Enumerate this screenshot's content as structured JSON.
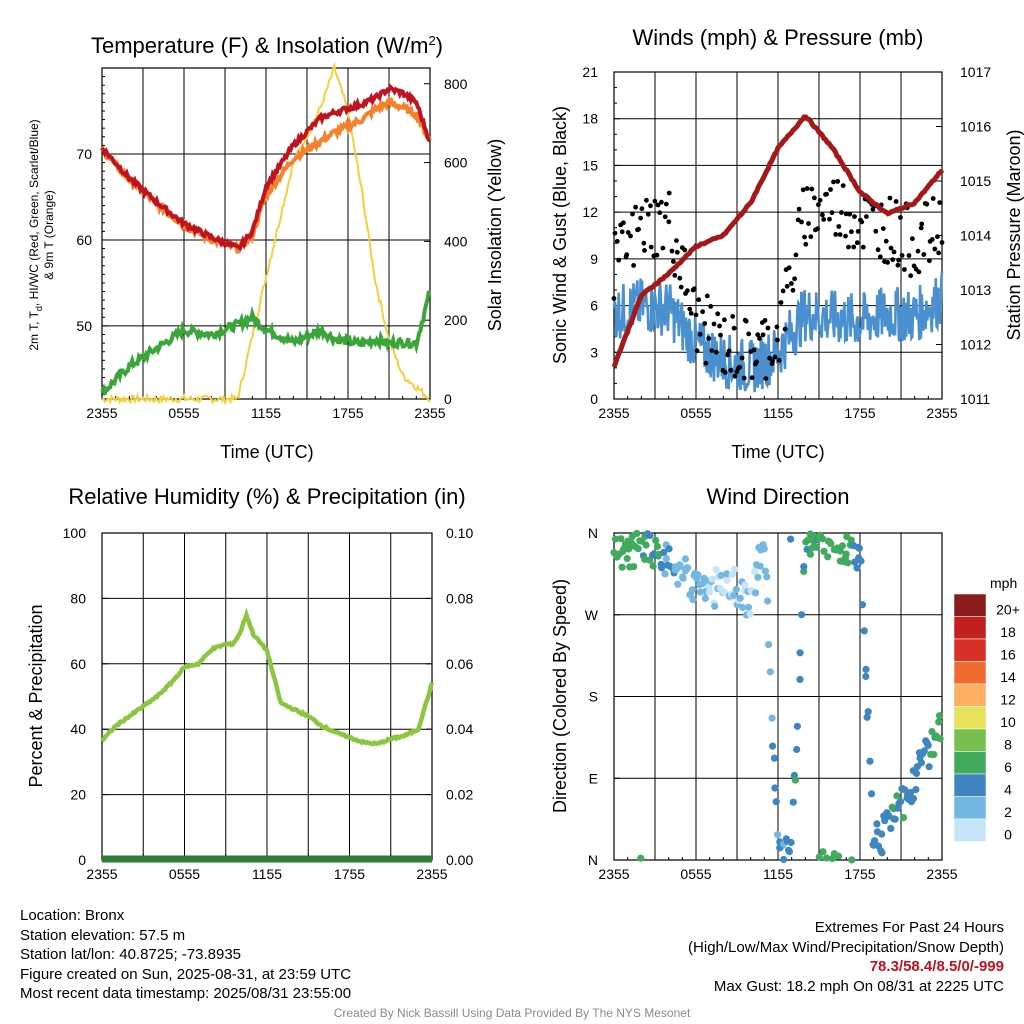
{
  "x_ticks": [
    "2355",
    "0555",
    "1155",
    "1755",
    "2355"
  ],
  "colors": {
    "red": "#c1121f",
    "orange": "#f4812b",
    "green": "#3aa63a",
    "yellow": "#f4d03f",
    "blue": "#4a90cf",
    "black": "#000000",
    "maroon": "#a31818",
    "rh": "#8cc63f",
    "precip": "#2f7d33"
  },
  "chart_data": [
    {
      "type": "line",
      "title": "Temperature (F) & Insolation (W/m²)",
      "xlabel": "Time (UTC)",
      "ylabel": "2m T, T_d, HI/WC (Red, Green, Scarlet/Blue) & 9m T (Orange)",
      "ylabel2": "Solar Insolation (Yellow)",
      "x": [
        0,
        2,
        4,
        6,
        8,
        10,
        11,
        12,
        14,
        16,
        17,
        19,
        20,
        21,
        22,
        23,
        24
      ],
      "ylim": [
        41.5,
        80
      ],
      "yticks": [
        50,
        60,
        70
      ],
      "y2lim": [
        0,
        840
      ],
      "y2ticks": [
        0,
        200,
        400,
        600,
        800
      ],
      "series": [
        {
          "name": "2m T",
          "values": [
            70.7,
            67.2,
            64.4,
            61.9,
            60.3,
            59.0,
            61.0,
            66.2,
            71.0,
            74.2,
            74.8,
            75.8,
            76.5,
            77.6,
            77.1,
            76.0,
            71.4
          ]
        },
        {
          "name": "9m T",
          "values": [
            70.5,
            67.0,
            64.2,
            61.7,
            60.1,
            59.0,
            60.6,
            65.2,
            69.5,
            71.5,
            72.5,
            74.0,
            75.2,
            76.0,
            75.4,
            74.6,
            71.5
          ]
        },
        {
          "name": "T_d",
          "values": [
            42.2,
            45.3,
            47.4,
            49.5,
            49.0,
            50.2,
            51.0,
            49.6,
            48.1,
            49.5,
            48.5,
            47.9,
            48.4,
            48.0,
            48.1,
            48.0,
            54.0
          ]
        },
        {
          "name": "Solar Insolation",
          "axis": "y2",
          "x": [
            0,
            9.8,
            10,
            12,
            14,
            16,
            17,
            18,
            19,
            20,
            21,
            22,
            23,
            24
          ],
          "values": [
            0,
            0,
            10,
            310,
            600,
            740,
            840,
            730,
            530,
            300,
            150,
            60,
            30,
            0
          ]
        }
      ]
    },
    {
      "type": "scatter",
      "title": "Winds (mph) & Pressure (mb)",
      "xlabel": "Time (UTC)",
      "ylabel": "Sonic Wind & Gust (Blue, Black)",
      "ylabel2": "Station Pressure (Maroon)",
      "ylim": [
        0,
        21
      ],
      "yticks": [
        0,
        3,
        6,
        9,
        12,
        15,
        18,
        21
      ],
      "y2lim": [
        1011,
        1017
      ],
      "y2ticks": [
        1011,
        1012,
        1013,
        1014,
        1015,
        1016,
        1017
      ],
      "x": [
        0,
        2,
        4,
        6,
        8,
        10,
        12,
        14,
        16,
        18,
        20,
        22,
        24
      ],
      "series": [
        {
          "name": "Sonic Wind",
          "values": [
            5.5,
            6.0,
            5.8,
            3.5,
            2.5,
            2.0,
            3.0,
            5.5,
            5.2,
            5.0,
            5.5,
            5.3,
            6.5
          ]
        },
        {
          "name": "Gust",
          "values": [
            8.5,
            11.0,
            11.5,
            5.0,
            3.5,
            3.0,
            4.0,
            12.0,
            12.5,
            11.5,
            11.0,
            10.0,
            11.0
          ]
        },
        {
          "name": "Station Pressure",
          "axis": "y2",
          "values": [
            1011.6,
            1012.9,
            1013.3,
            1013.8,
            1014.0,
            1014.6,
            1015.6,
            1016.2,
            1015.6,
            1014.8,
            1014.4,
            1014.6,
            1015.2
          ]
        }
      ]
    },
    {
      "type": "line",
      "title": "Relative Humidity (%) & Precipitation (in)",
      "ylabel": "Percent & Precipitation",
      "x": [
        0,
        1,
        2,
        3,
        4,
        5,
        6,
        7,
        8,
        9,
        9.5,
        10,
        10.5,
        11,
        12,
        13,
        14,
        15,
        16,
        17,
        18,
        19,
        20,
        21,
        22,
        23,
        24
      ],
      "ylim": [
        0,
        100
      ],
      "yticks": [
        0,
        20,
        40,
        60,
        80,
        100
      ],
      "y2lim": [
        0,
        0.1
      ],
      "y2ticks": [
        "0.00",
        "0.02",
        "0.04",
        "0.06",
        "0.08",
        "0.10"
      ],
      "series": [
        {
          "name": "Relative Humidity",
          "values": [
            36.5,
            41,
            44,
            47,
            50,
            54,
            59,
            60,
            64.5,
            66,
            66,
            69,
            75,
            69,
            64,
            48,
            46,
            44,
            41,
            39,
            37.5,
            36,
            35.5,
            37,
            38,
            40,
            54
          ]
        },
        {
          "name": "Precipitation",
          "axis": "y2",
          "values": [
            0,
            0,
            0,
            0,
            0,
            0,
            0,
            0,
            0,
            0,
            0,
            0,
            0,
            0,
            0,
            0,
            0,
            0,
            0,
            0,
            0,
            0,
            0,
            0,
            0,
            0,
            0
          ]
        }
      ]
    },
    {
      "type": "scatter",
      "title": "Wind Direction",
      "ylabel": "Direction (Colored By Speed)",
      "yticks": [
        "N",
        "E",
        "S",
        "W",
        "N"
      ],
      "ylim": [
        0,
        360
      ],
      "x": [
        0,
        1,
        2,
        3,
        4,
        5,
        6,
        7,
        8,
        9,
        10,
        11,
        12,
        13,
        14,
        15,
        16,
        17,
        18,
        19,
        20,
        21,
        22,
        23,
        24
      ],
      "directions": [
        335,
        340,
        345,
        340,
        330,
        320,
        300,
        290,
        310,
        300,
        280,
        355,
        5,
        10,
        350,
        355,
        350,
        345,
        340,
        15,
        35,
        60,
        90,
        120,
        150
      ],
      "speeds": [
        6,
        6,
        6,
        5,
        3,
        2,
        2,
        1,
        1,
        1,
        1,
        2,
        3,
        4,
        5,
        6,
        6,
        6,
        4,
        4,
        4,
        5,
        4,
        4,
        7
      ],
      "legend_title": "mph",
      "legend": [
        {
          "label": "20+",
          "color": "#8b1a1a"
        },
        {
          "label": "18",
          "color": "#c0201e"
        },
        {
          "label": "16",
          "color": "#d73027"
        },
        {
          "label": "14",
          "color": "#ef6b2f"
        },
        {
          "label": "12",
          "color": "#fdae61"
        },
        {
          "label": "10",
          "color": "#e8e15a"
        },
        {
          "label": "8",
          "color": "#78c04e"
        },
        {
          "label": "6",
          "color": "#41ab5d"
        },
        {
          "label": "4",
          "color": "#3f86c1"
        },
        {
          "label": "2",
          "color": "#74b7e3"
        },
        {
          "label": "0",
          "color": "#c6e4f7"
        }
      ]
    }
  ],
  "footer_left": [
    "Location: Bronx",
    "Station elevation: 57.5 m",
    "Station lat/lon: 40.8725; -73.8935",
    "Figure created on Sun, 2025-08-31, at 23:59 UTC",
    "Most recent data timestamp: 2025/08/31 23:55:00"
  ],
  "footer_right": {
    "title": "Extremes For Past 24 Hours",
    "subtitle": "(High/Low/Max Wind/Precipitation/Snow Depth)",
    "values": "78.3/58.4/8.5/0/-999",
    "gust": "Max Gust: 18.2 mph On 08/31 at 2225 UTC"
  },
  "credit": "Created By Nick Bassill Using Data Provided By The NYS Mesonet"
}
